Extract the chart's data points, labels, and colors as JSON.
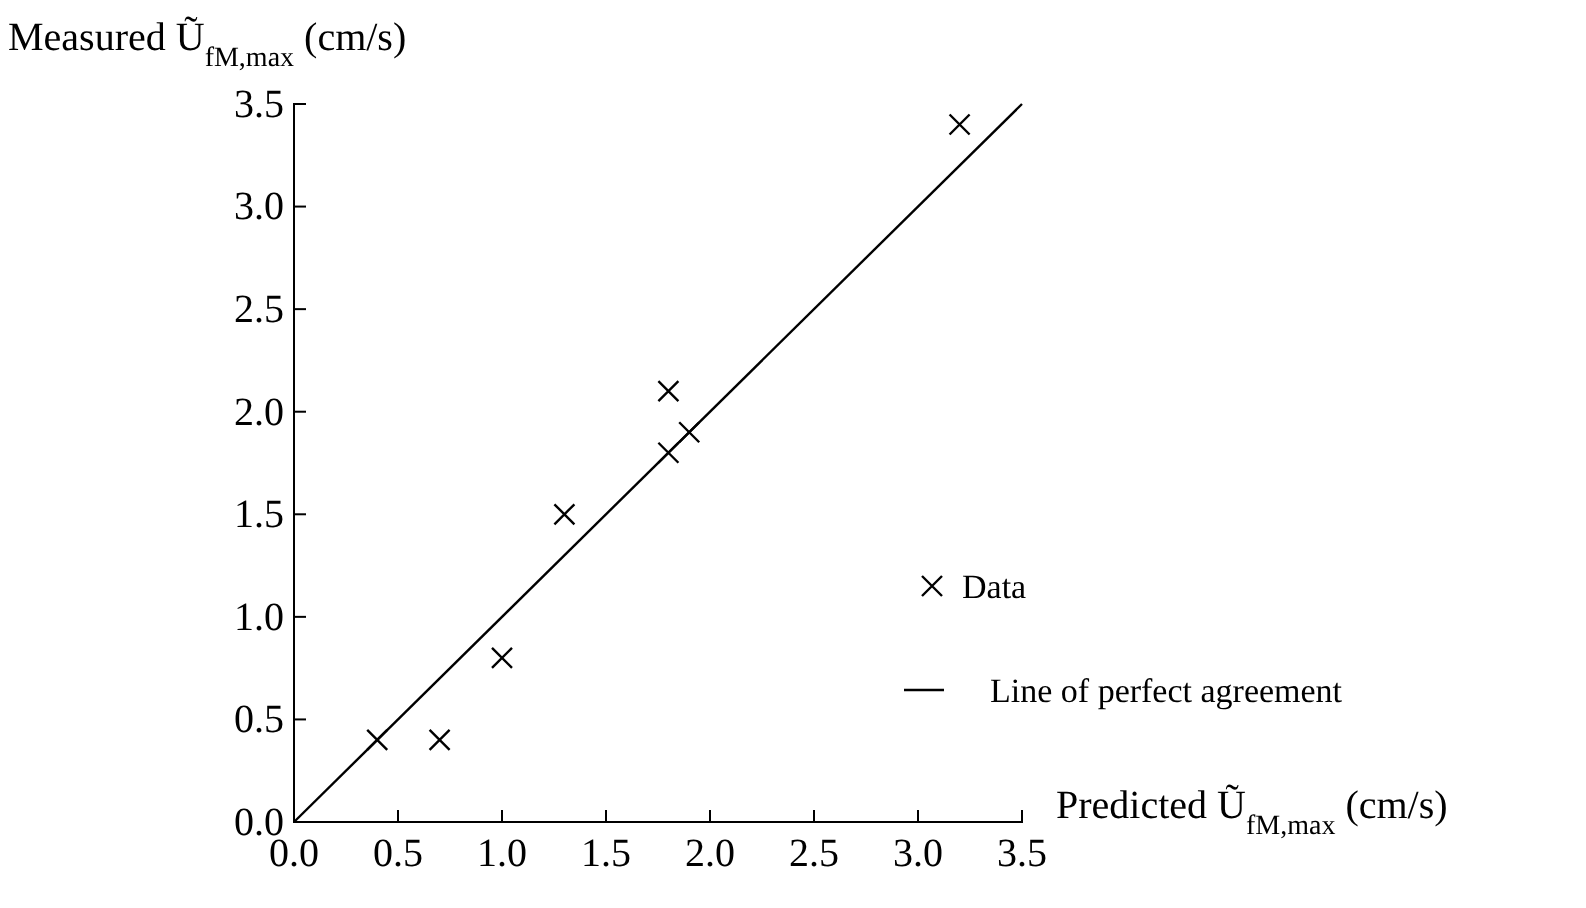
{
  "chart_data": {
    "type": "scatter",
    "xlabel": "Predicted Ũ$_{fM,max}$ (cm/s)",
    "ylabel": "Measured Ũ$_{fM,max}$ (cm/s)",
    "xlim": [
      0,
      3.5
    ],
    "ylim": [
      0,
      3.5
    ],
    "xticks": [
      {
        "value": 0,
        "label": "0.0"
      },
      {
        "value": 0.5,
        "label": "0.5"
      },
      {
        "value": 1,
        "label": "1.0"
      },
      {
        "value": 1.5,
        "label": "1.5"
      },
      {
        "value": 2,
        "label": "2.0"
      },
      {
        "value": 2.5,
        "label": "2.5"
      },
      {
        "value": 3,
        "label": "3.0"
      },
      {
        "value": 3.5,
        "label": "3.5"
      }
    ],
    "yticks": [
      {
        "value": 0,
        "label": "0.0"
      },
      {
        "value": 0.5,
        "label": "0.5"
      },
      {
        "value": 1,
        "label": "1.0"
      },
      {
        "value": 1.5,
        "label": "1.5"
      },
      {
        "value": 2,
        "label": "2.0"
      },
      {
        "value": 2.5,
        "label": "2.5"
      },
      {
        "value": 3,
        "label": "3.0"
      },
      {
        "value": 3.5,
        "label": "3.5"
      }
    ],
    "legend": "right",
    "series": [
      {
        "name": "Data",
        "marker": "cross",
        "color": "#000000",
        "x": [
          0.4,
          0.7,
          1.0,
          1.3,
          1.8,
          1.8,
          1.9,
          3.2
        ],
        "values": [
          0.4,
          0.4,
          0.8,
          1.5,
          2.1,
          1.8,
          1.9,
          3.4
        ]
      },
      {
        "name": "Line of perfect agreement",
        "type": "line",
        "color": "#000000",
        "x": [
          0,
          3.5
        ],
        "values": [
          0,
          3.5
        ]
      }
    ]
  }
}
